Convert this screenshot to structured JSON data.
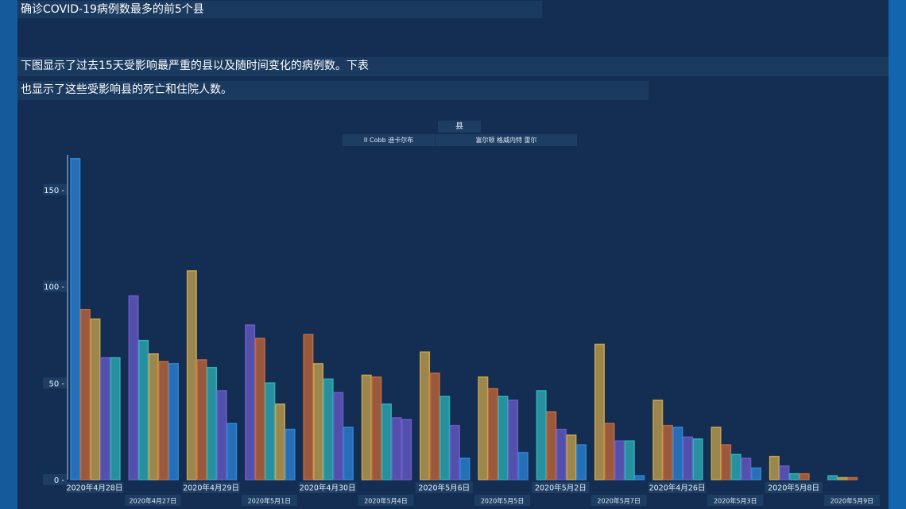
{
  "page": {
    "title": "确诊COVID-19病例数最多的前5个县",
    "description_line1": "下图显示了过去15天受影响最严重的县以及随时间变化的病例数。下表",
    "description_line2": "也显示了这些受影响县的死亡和住院人数。"
  },
  "colors": {
    "blue": "#2e86d8",
    "orange": "#c5683a",
    "yellow": "#c9a44e",
    "purple": "#6a5cc9",
    "teal": "#2fb0b8"
  },
  "chart_data": {
    "type": "bar",
    "legend": {
      "title": "县",
      "entries": [
        "II Cobb 迪卡尔布",
        "富尔顿 格威内特 雷尔"
      ]
    },
    "ylim": [
      0,
      170
    ],
    "yticks": [
      0,
      50,
      100,
      150
    ],
    "categories": [
      "2020年4月28日",
      "2020年4月27日",
      "2020年4月29日",
      "2020年5月1日",
      "2020年4月30日",
      "2020年5月4日",
      "2020年5月6日",
      "2020年5月5日",
      "2020年5月2日",
      "2020年5月7日",
      "2020年4月26日",
      "2020年5月3日",
      "2020年5月8日",
      "2020年5月9日"
    ],
    "groups": [
      {
        "bars": [
          {
            "color": "blue",
            "value": 166
          },
          {
            "color": "orange",
            "value": 88
          },
          {
            "color": "yellow",
            "value": 83
          },
          {
            "color": "purple",
            "value": 63
          },
          {
            "color": "teal",
            "value": 63
          }
        ]
      },
      {
        "bars": [
          {
            "color": "purple",
            "value": 95
          },
          {
            "color": "teal",
            "value": 72
          },
          {
            "color": "yellow",
            "value": 65
          },
          {
            "color": "orange",
            "value": 61
          },
          {
            "color": "blue",
            "value": 60
          }
        ]
      },
      {
        "bars": [
          {
            "color": "yellow",
            "value": 108
          },
          {
            "color": "orange",
            "value": 62
          },
          {
            "color": "teal",
            "value": 58
          },
          {
            "color": "purple",
            "value": 46
          },
          {
            "color": "blue",
            "value": 29
          }
        ]
      },
      {
        "bars": [
          {
            "color": "purple",
            "value": 80
          },
          {
            "color": "orange",
            "value": 73
          },
          {
            "color": "teal",
            "value": 50
          },
          {
            "color": "yellow",
            "value": 39
          },
          {
            "color": "blue",
            "value": 26
          }
        ]
      },
      {
        "bars": [
          {
            "color": "orange",
            "value": 75
          },
          {
            "color": "yellow",
            "value": 60
          },
          {
            "color": "teal",
            "value": 52
          },
          {
            "color": "purple",
            "value": 45
          },
          {
            "color": "blue",
            "value": 27
          }
        ]
      },
      {
        "bars": [
          {
            "color": "yellow",
            "value": 54
          },
          {
            "color": "orange",
            "value": 53
          },
          {
            "color": "teal",
            "value": 39
          },
          {
            "color": "purple",
            "value": 32
          },
          {
            "color": "purple",
            "value": 31
          }
        ]
      },
      {
        "bars": [
          {
            "color": "yellow",
            "value": 66
          },
          {
            "color": "orange",
            "value": 55
          },
          {
            "color": "teal",
            "value": 43
          },
          {
            "color": "purple",
            "value": 28
          },
          {
            "color": "blue",
            "value": 11
          }
        ]
      },
      {
        "bars": [
          {
            "color": "yellow",
            "value": 53
          },
          {
            "color": "orange",
            "value": 47
          },
          {
            "color": "teal",
            "value": 43
          },
          {
            "color": "purple",
            "value": 41
          },
          {
            "color": "blue",
            "value": 14
          }
        ]
      },
      {
        "bars": [
          {
            "color": "teal",
            "value": 46
          },
          {
            "color": "orange",
            "value": 35
          },
          {
            "color": "purple",
            "value": 26
          },
          {
            "color": "yellow",
            "value": 23
          },
          {
            "color": "blue",
            "value": 18
          }
        ]
      },
      {
        "bars": [
          {
            "color": "yellow",
            "value": 70
          },
          {
            "color": "orange",
            "value": 29
          },
          {
            "color": "purple",
            "value": 20
          },
          {
            "color": "teal",
            "value": 20
          },
          {
            "color": "blue",
            "value": 2
          }
        ]
      },
      {
        "bars": [
          {
            "color": "yellow",
            "value": 41
          },
          {
            "color": "orange",
            "value": 28
          },
          {
            "color": "blue",
            "value": 27
          },
          {
            "color": "purple",
            "value": 22
          },
          {
            "color": "teal",
            "value": 21
          }
        ]
      },
      {
        "bars": [
          {
            "color": "yellow",
            "value": 27
          },
          {
            "color": "orange",
            "value": 18
          },
          {
            "color": "teal",
            "value": 13
          },
          {
            "color": "purple",
            "value": 11
          },
          {
            "color": "blue",
            "value": 6
          }
        ]
      },
      {
        "bars": [
          {
            "color": "yellow",
            "value": 12
          },
          {
            "color": "purple",
            "value": 7
          },
          {
            "color": "teal",
            "value": 3
          },
          {
            "color": "orange",
            "value": 3
          }
        ]
      },
      {
        "bars": [
          {
            "color": "teal",
            "value": 2
          },
          {
            "color": "yellow",
            "value": 1
          },
          {
            "color": "orange",
            "value": 1
          }
        ]
      }
    ]
  }
}
